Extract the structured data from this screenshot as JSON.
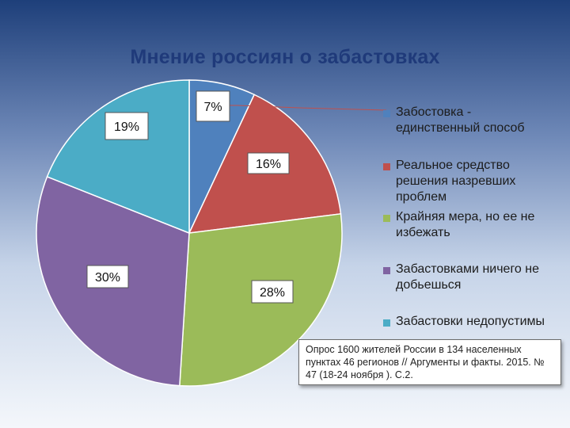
{
  "title": "Мнение россиян о забастовках",
  "chart_data": {
    "type": "pie",
    "title": "Мнение россиян о забастовках",
    "categories": [
      "Забостовка - единственный способ",
      "Реальное средство решения назревших проблем",
      "Крайняя мера, но ее не избежать",
      "Забастовками ничего не добьешься",
      "Забастовки недопустимы"
    ],
    "values": [
      7,
      16,
      28,
      30,
      19
    ],
    "data_labels": [
      "7%",
      "16%",
      "28%",
      "30%",
      "19%"
    ],
    "colors": [
      "#4f81bd",
      "#c0504d",
      "#9bbb59",
      "#8064a2",
      "#4bacc6"
    ],
    "legend_position": "right"
  },
  "legend": [
    {
      "lines": [
        "Забостовка -",
        "единственный способ"
      ],
      "color": "#4f81bd"
    },
    {
      "lines": [
        "Реальное средство",
        "решения назревших",
        "проблем"
      ],
      "color": "#c0504d"
    },
    {
      "lines": [
        "Крайняя мера, но ее не",
        "избежать"
      ],
      "color": "#9bbb59"
    },
    {
      "lines": [
        "Забастовками ничего не",
        "добьешься"
      ],
      "color": "#8064a2"
    },
    {
      "lines": [
        "Забастовки недопустимы"
      ],
      "color": "#4bacc6"
    }
  ],
  "source_note": "Опрос 1600 жителей России в 134 населенных пунктах 46 регионов // Аргументы и факты. 2015. № 47 (18-24 ноября ). С.2."
}
